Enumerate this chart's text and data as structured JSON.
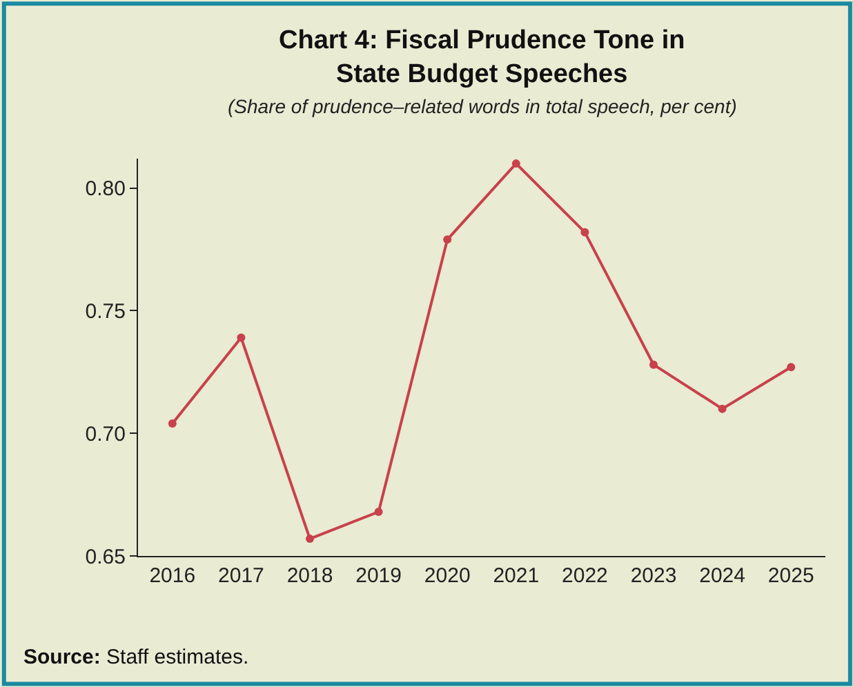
{
  "chart_data": {
    "type": "line",
    "title": "Chart 4: Fiscal Prudence Tone in\nState Budget Speeches",
    "subtitle": "(Share of prudence–related words in total speech, per cent)",
    "categories": [
      "2016",
      "2017",
      "2018",
      "2019",
      "2020",
      "2021",
      "2022",
      "2023",
      "2024",
      "2025"
    ],
    "series": [
      {
        "color": "#c8414b",
        "values": [
          0.704,
          0.739,
          0.657,
          0.668,
          0.779,
          0.81,
          0.782,
          0.728,
          0.71,
          0.727
        ]
      }
    ],
    "ylim": [
      0.65,
      0.812
    ],
    "yticks": [
      {
        "value": 0.65,
        "label": "0.65"
      },
      {
        "value": 0.7,
        "label": "0.70"
      },
      {
        "value": 0.75,
        "label": "0.75"
      },
      {
        "value": 0.8,
        "label": "0.80"
      }
    ],
    "grid": false,
    "legend": false,
    "marker": "circle",
    "line_style": "solid",
    "annotations": [
      "Source: Staff estimates."
    ]
  }
}
